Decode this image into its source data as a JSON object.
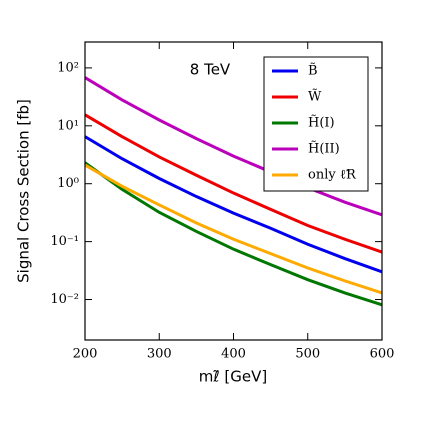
{
  "chart_data": {
    "type": "line",
    "annotation": "8 TeV",
    "xlabel": "mℓ̃ [GeV]",
    "ylabel": "Signal Cross Section [fb]",
    "x": [
      200,
      250,
      300,
      350,
      400,
      450,
      500,
      550,
      600
    ],
    "xlim": [
      200,
      600
    ],
    "xticks": [
      200,
      300,
      400,
      500,
      600
    ],
    "ylim": [
      0.002,
      280
    ],
    "log_y": true,
    "yticks": [
      {
        "value": 0.01,
        "label": "10⁻²"
      },
      {
        "value": 0.1,
        "label": "10⁻¹"
      },
      {
        "value": 1,
        "label": "10⁰"
      },
      {
        "value": 10,
        "label": "10¹"
      },
      {
        "value": 100,
        "label": "10²"
      }
    ],
    "legend": "upper right",
    "series": [
      {
        "name": "B̃",
        "color": "#0000ee",
        "values": [
          6.5,
          2.7,
          1.23,
          0.6,
          0.31,
          0.17,
          0.09,
          0.051,
          0.03
        ]
      },
      {
        "name": "W̃",
        "color": "#ee0000",
        "values": [
          15.5,
          6.5,
          2.9,
          1.4,
          0.69,
          0.36,
          0.19,
          0.11,
          0.066
        ]
      },
      {
        "name": "H̃(I)",
        "color": "#007700",
        "values": [
          2.3,
          0.8,
          0.32,
          0.15,
          0.074,
          0.04,
          0.022,
          0.013,
          0.0081
        ]
      },
      {
        "name": "H̃(II)",
        "color": "#bb00bb",
        "values": [
          68,
          28,
          12.6,
          6.0,
          3.0,
          1.6,
          0.85,
          0.48,
          0.29
        ]
      },
      {
        "name": "only ℓ̃R",
        "color": "#ffaa00",
        "values": [
          2.1,
          0.9,
          0.43,
          0.21,
          0.11,
          0.062,
          0.035,
          0.021,
          0.013
        ]
      }
    ]
  }
}
